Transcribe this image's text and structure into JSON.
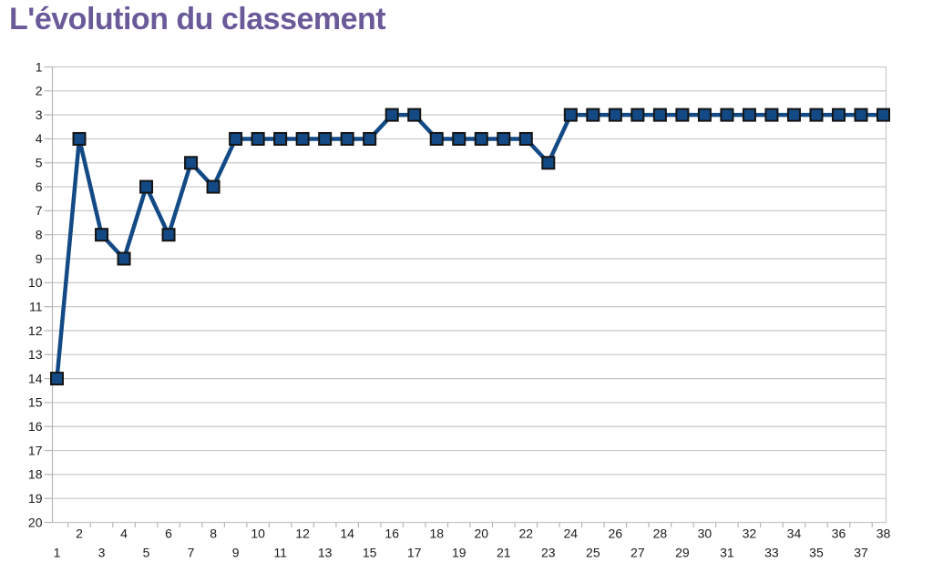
{
  "chart_data": {
    "type": "line",
    "title": "L'évolution du classement",
    "title_color": "#6a5a9a",
    "x": [
      1,
      2,
      3,
      4,
      5,
      6,
      7,
      8,
      9,
      10,
      11,
      12,
      13,
      14,
      15,
      16,
      17,
      18,
      19,
      20,
      21,
      22,
      23,
      24,
      25,
      26,
      27,
      28,
      29,
      30,
      31,
      32,
      33,
      34,
      35,
      36,
      37,
      38
    ],
    "values": [
      14,
      4,
      8,
      9,
      6,
      8,
      5,
      6,
      4,
      4,
      4,
      4,
      4,
      4,
      4,
      3,
      3,
      4,
      4,
      4,
      4,
      4,
      5,
      3,
      3,
      3,
      3,
      3,
      3,
      3,
      3,
      3,
      3,
      3,
      3,
      3,
      3,
      3
    ],
    "x_axis": {
      "tick_labels": [
        1,
        2,
        3,
        4,
        5,
        6,
        7,
        8,
        9,
        10,
        11,
        12,
        13,
        14,
        15,
        16,
        17,
        18,
        19,
        20,
        21,
        22,
        23,
        24,
        25,
        26,
        27,
        28,
        29,
        30,
        31,
        32,
        33,
        34,
        35,
        36,
        37,
        38
      ],
      "staggered": true
    },
    "y_axis": {
      "tick_labels": [
        1,
        2,
        3,
        4,
        5,
        6,
        7,
        8,
        9,
        10,
        11,
        12,
        13,
        14,
        15,
        16,
        17,
        18,
        19,
        20
      ],
      "min": 1,
      "max": 20,
      "inverted": true
    },
    "ylim": [
      1,
      20
    ],
    "grid": "horizontal",
    "legend": "none",
    "series_color": "#134a85",
    "marker": {
      "shape": "square",
      "border_color": "#141414"
    },
    "grid_color": "#c8c8c8",
    "axis_color": "#b6b6b6",
    "label_color": "#1a1a1a"
  }
}
